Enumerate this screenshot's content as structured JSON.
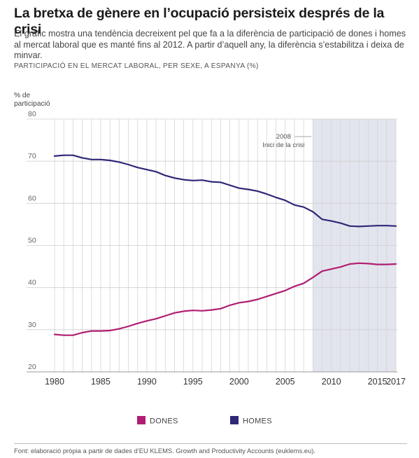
{
  "header": {
    "title": "La bretxa de gènere en l’ocupació persisteix després de la crisi",
    "subtitle": "El gràfic mostra una tendència decreixent pel que fa a la diferència de participació de dones i homes al mercat laboral que es manté fins al 2012. A partir d’aquell any, la diferència s’estabilitza i deixa de minvar.",
    "kicker": "PARTICIPACIÓ EN EL MERCAT LABORAL, PER SEXE, A ESPANYA (%)"
  },
  "footer": {
    "source": "Font: elaboració pròpia a partir de dades d’EU KLEMS. Growth and Productivity Accounts (euklems.eu)."
  },
  "chart_data": {
    "type": "line",
    "ylabel": "% de participació",
    "ylabel_lines": [
      "% de",
      "participació"
    ],
    "ylim": [
      20,
      80
    ],
    "yticks": [
      20,
      30,
      40,
      50,
      60,
      70,
      80
    ],
    "xlim": [
      1980,
      2017
    ],
    "xticks": [
      1980,
      1985,
      1990,
      1995,
      2000,
      2005,
      2010,
      2015,
      2017
    ],
    "x": [
      1980,
      1981,
      1982,
      1983,
      1984,
      1985,
      1986,
      1987,
      1988,
      1989,
      1990,
      1991,
      1992,
      1993,
      1994,
      1995,
      1996,
      1997,
      1998,
      1999,
      2000,
      2001,
      2002,
      2003,
      2004,
      2005,
      2006,
      2007,
      2008,
      2009,
      2010,
      2011,
      2012,
      2013,
      2014,
      2015,
      2016,
      2017
    ],
    "series": [
      {
        "name": "DONES",
        "color": "#b01e72",
        "values": [
          28.9,
          28.7,
          28.7,
          29.3,
          29.7,
          29.7,
          29.8,
          30.2,
          30.8,
          31.5,
          32.1,
          32.6,
          33.3,
          34.0,
          34.4,
          34.6,
          34.5,
          34.7,
          35.0,
          35.8,
          36.4,
          36.7,
          37.2,
          37.9,
          38.6,
          39.3,
          40.3,
          41.0,
          42.4,
          43.9,
          44.4,
          44.9,
          45.6,
          45.8,
          45.7,
          45.5,
          45.5,
          45.6
        ]
      },
      {
        "name": "HOMES",
        "color": "#2e2777",
        "values": [
          71.2,
          71.4,
          71.4,
          70.8,
          70.4,
          70.4,
          70.2,
          69.8,
          69.2,
          68.5,
          68.0,
          67.5,
          66.6,
          66.0,
          65.6,
          65.4,
          65.5,
          65.1,
          65.0,
          64.3,
          63.6,
          63.3,
          62.9,
          62.2,
          61.4,
          60.7,
          59.6,
          59.1,
          58.0,
          56.2,
          55.8,
          55.3,
          54.6,
          54.5,
          54.6,
          54.7,
          54.7,
          54.6
        ]
      }
    ],
    "shaded_region": {
      "from": 2008,
      "to": 2017,
      "color": "#e3e5ee"
    },
    "annotation": {
      "x": 2008,
      "lines": [
        "2008",
        "Inici de la crisi"
      ]
    },
    "legend": {
      "placement": "bottom",
      "entries": [
        "DONES",
        "HOMES"
      ]
    },
    "grid": true
  }
}
